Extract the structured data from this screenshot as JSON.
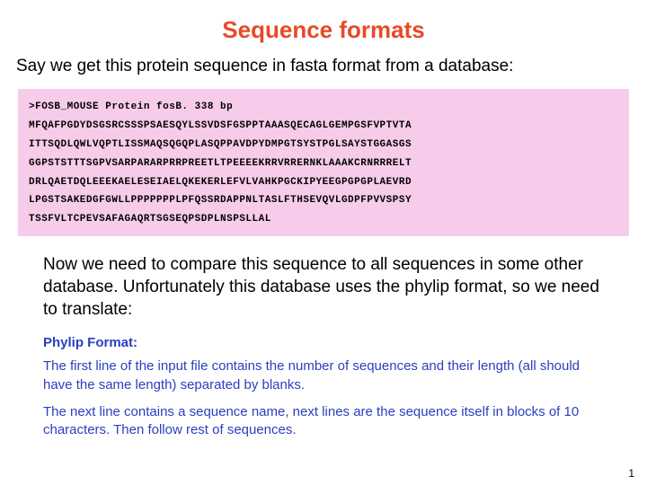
{
  "title": "Sequence formats",
  "intro": "Say we get this protein sequence in fasta format from a database:",
  "sequence": {
    "header": ">FOSB_MOUSE Protein fosB. 338 bp",
    "lines": [
      "MFQAFPGDYDSGSRCSSSPSAESQYLSSVDSFGSPPTAAASQECAGLGEMPGSFVPTVTA",
      "ITTSQDLQWLVQPTLISSMAQSQGQPLASQPPAVDPYDMPGTSYSTPGLSAYSTGGASGS",
      "GGPSTSTTTSGPVSARPARARPRRPREETLTPEEEEKRRVRRERNKLAAAKCRNRRRELT",
      "DRLQAETDQLEEEKAELESEIAELQKEKERLEFVLVAHKPGCKIPYEEGPGPGPLAEVRD",
      "LPGSTSAKEDGFGWLLPPPPPPPLPFQSSRDAPPNLTASLFTHSEVQVLGDPFPVVSPSY",
      "TSSFVLTCPEVSAFAGAQRTSGSEQPSDPLNSPSLLAL"
    ],
    "bg_color": "#f7cbea"
  },
  "explain": "Now we need to compare this sequence to all sequences in some other database. Unfortunately this database uses the phylip format, so we need to translate:",
  "phylip": {
    "heading": "Phylip Format:",
    "p1": "The first line of the input file contains the number of sequences and their length (all should have the same length) separated by blanks.",
    "p2": "The next line contains a sequence name, next lines are the sequence itself in blocks of 10 characters. Then follow rest of sequences.",
    "text_color": "#2a3fbf"
  },
  "page_number": "1"
}
